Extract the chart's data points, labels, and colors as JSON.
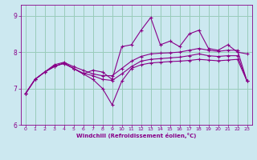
{
  "xlabel": "Windchill (Refroidissement éolien,°C)",
  "xlim": [
    -0.5,
    23.5
  ],
  "ylim": [
    6,
    9.3
  ],
  "yticks": [
    6,
    7,
    8,
    9
  ],
  "xticks": [
    0,
    1,
    2,
    3,
    4,
    5,
    6,
    7,
    8,
    9,
    10,
    11,
    12,
    13,
    14,
    15,
    16,
    17,
    18,
    19,
    20,
    21,
    22,
    23
  ],
  "bg_color": "#cce8f0",
  "line_color": "#880088",
  "grid_color": "#99ccbb",
  "series": {
    "line1": [
      6.85,
      7.25,
      7.45,
      7.6,
      7.7,
      7.55,
      7.4,
      7.5,
      7.45,
      7.25,
      8.15,
      8.2,
      8.6,
      8.95,
      8.2,
      8.3,
      8.15,
      8.5,
      8.6,
      8.1,
      8.05,
      8.2,
      8.0,
      7.95
    ],
    "line2": [
      6.85,
      7.25,
      7.45,
      7.6,
      7.7,
      7.55,
      7.4,
      7.25,
      7.0,
      6.55,
      7.2,
      7.55,
      7.65,
      7.7,
      7.72,
      7.74,
      7.75,
      7.77,
      7.8,
      7.78,
      7.76,
      7.78,
      7.8,
      7.2
    ],
    "line3": [
      6.85,
      7.25,
      7.45,
      7.62,
      7.68,
      7.55,
      7.42,
      7.35,
      7.25,
      7.22,
      7.4,
      7.6,
      7.75,
      7.8,
      7.82,
      7.84,
      7.86,
      7.9,
      7.95,
      7.9,
      7.88,
      7.9,
      7.9,
      7.2
    ],
    "line4": [
      6.85,
      7.25,
      7.45,
      7.65,
      7.72,
      7.6,
      7.5,
      7.4,
      7.35,
      7.35,
      7.55,
      7.75,
      7.88,
      7.95,
      7.97,
      7.98,
      8.0,
      8.05,
      8.1,
      8.05,
      8.02,
      8.05,
      8.05,
      7.2
    ]
  }
}
